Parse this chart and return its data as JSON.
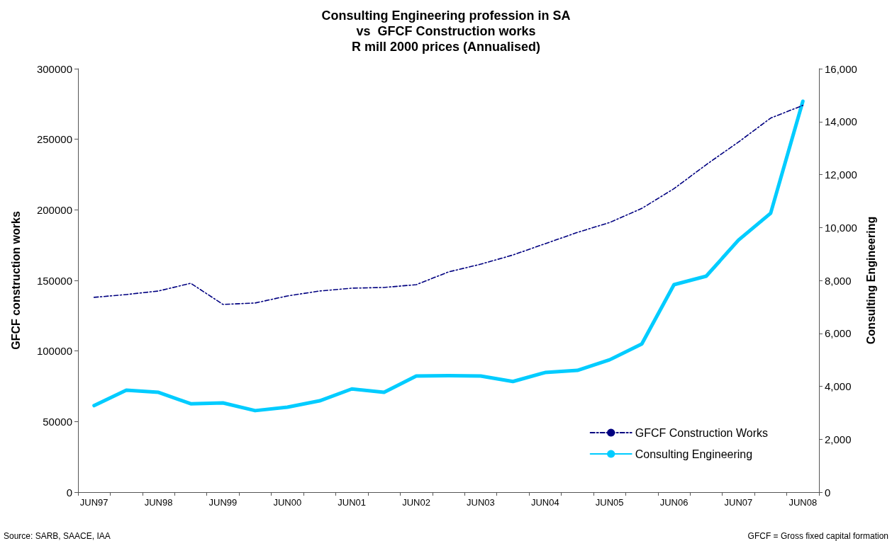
{
  "chart_data": {
    "type": "line",
    "title": "Consulting Engineering profession in SA\nvs  GFCF Construction works\nR mill 2000 prices (Annualised)",
    "ylabel": "GFCF construction works",
    "y2label": "Consulting Engineering",
    "categories": [
      "JUN97",
      null,
      "JUN98",
      null,
      "JUN99",
      null,
      "JUN00",
      null,
      "JUN01",
      null,
      "JUN02",
      null,
      "JUN03",
      null,
      "JUN04",
      null,
      "JUN05",
      null,
      "JUN06",
      null,
      "JUN07",
      null,
      "JUN08"
    ],
    "series": [
      {
        "name": "GFCF Construction Works",
        "color": "#000080",
        "line_style": "dashed",
        "values": [
          138000,
          140000,
          142500,
          148000,
          133000,
          134000,
          139000,
          142500,
          144500,
          145000,
          147000,
          156000,
          161500,
          168000,
          176000,
          184000,
          191000,
          201000,
          215000,
          232000,
          248000,
          265000,
          274000
        ]
      },
      {
        "name": "Consulting Engineering",
        "color": "#00ccff",
        "line_style": "solid",
        "axis": "y2",
        "values": [
          3270,
          3850,
          3770,
          3340,
          3370,
          3080,
          3210,
          3450,
          3900,
          3770,
          4390,
          4400,
          4390,
          4180,
          4520,
          4600,
          5000,
          5600,
          7840,
          8160,
          9520,
          10540,
          14770
        ]
      }
    ],
    "ylim": [
      0,
      300000
    ],
    "yticks": [
      0,
      50000,
      100000,
      150000,
      200000,
      250000,
      300000
    ],
    "y2lim": [
      0,
      16000
    ],
    "y2ticks": [
      {
        "value": 0,
        "label": "0"
      },
      {
        "value": 2000,
        "label": "2,000"
      },
      {
        "value": 4000,
        "label": "4,000"
      },
      {
        "value": 6000,
        "label": "6,000"
      },
      {
        "value": 8000,
        "label": "8,000"
      },
      {
        "value": 10000,
        "label": "10,000"
      },
      {
        "value": 12000,
        "label": "12,000"
      },
      {
        "value": 14000,
        "label": "14,000"
      },
      {
        "value": 16000,
        "label": "16,000"
      }
    ],
    "grid": false,
    "legend": "bottom right",
    "marker": "none",
    "annotations": [
      "Source: SARB, SAACE, IAA",
      "GFCF = Gross fixed capital formation"
    ]
  }
}
